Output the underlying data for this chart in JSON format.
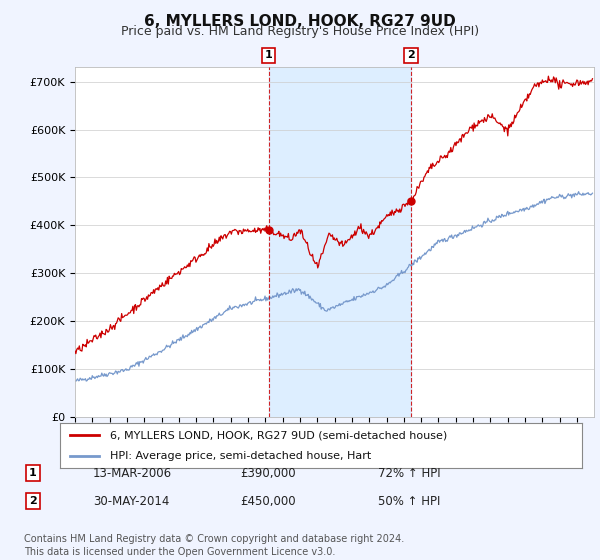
{
  "title": "6, MYLLERS LOND, HOOK, RG27 9UD",
  "subtitle": "Price paid vs. HM Land Registry's House Price Index (HPI)",
  "title_fontsize": 11,
  "subtitle_fontsize": 9,
  "ylim": [
    0,
    730000
  ],
  "yticks": [
    0,
    100000,
    200000,
    300000,
    400000,
    500000,
    600000,
    700000
  ],
  "ytick_labels": [
    "£0",
    "£100K",
    "£200K",
    "£300K",
    "£400K",
    "£500K",
    "£600K",
    "£700K"
  ],
  "xlim_start": 1995.0,
  "xlim_end": 2024.99,
  "house_color": "#cc0000",
  "hpi_color": "#7799cc",
  "shaded_color": "#ddeeff",
  "background_color": "#f0f4ff",
  "plot_bg_color": "#ffffff",
  "grid_color": "#cccccc",
  "marker1_year": 2006.19,
  "marker1_value": 390000,
  "marker1_label": "1",
  "marker2_year": 2014.41,
  "marker2_value": 450000,
  "marker2_label": "2",
  "legend_house": "6, MYLLERS LOND, HOOK, RG27 9UD (semi-detached house)",
  "legend_hpi": "HPI: Average price, semi-detached house, Hart",
  "table_row1": [
    "1",
    "13-MAR-2006",
    "£390,000",
    "72% ↑ HPI"
  ],
  "table_row2": [
    "2",
    "30-MAY-2014",
    "£450,000",
    "50% ↑ HPI"
  ],
  "footnote": "Contains HM Land Registry data © Crown copyright and database right 2024.\nThis data is licensed under the Open Government Licence v3.0.",
  "footnote_fontsize": 7.0
}
